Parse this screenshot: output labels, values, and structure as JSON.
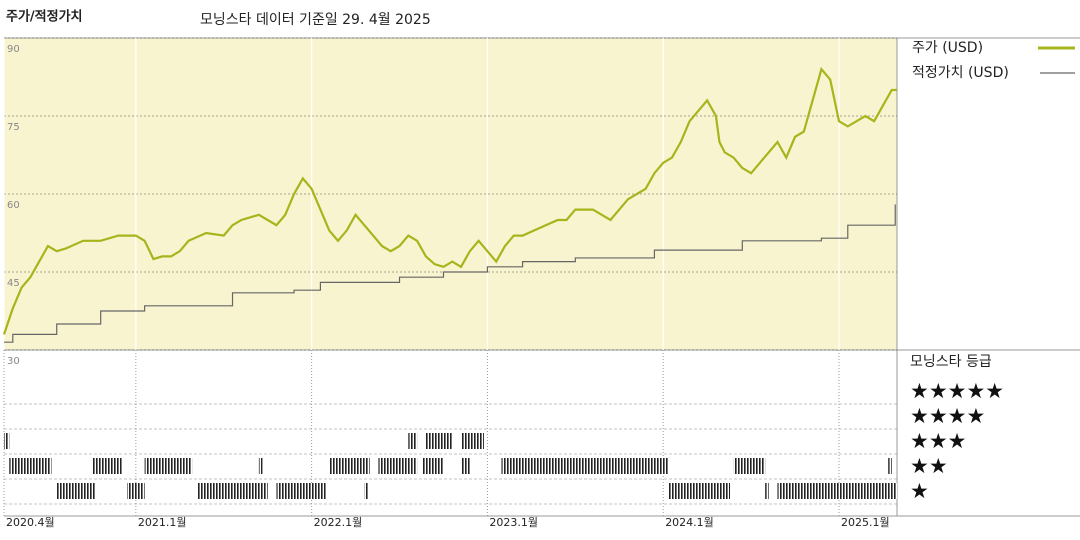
{
  "chart_data": {
    "type": "line",
    "title": "주가/적정가치",
    "subtitle": "모닝스타 데이터 기준일 29. 4월 2025",
    "xlim": [
      2020.25,
      2025.33
    ],
    "ylim": [
      30,
      90
    ],
    "yticks": [
      30,
      45,
      60,
      75,
      90
    ],
    "xticks": [
      {
        "value": 2020.25,
        "label": "2020.4월"
      },
      {
        "value": 2021,
        "label": "2021.1월"
      },
      {
        "value": 2022,
        "label": "2022.1월"
      },
      {
        "value": 2023,
        "label": "2023.1월"
      },
      {
        "value": 2024,
        "label": "2024.1월"
      },
      {
        "value": 2025,
        "label": "2025.1월"
      }
    ],
    "grid": true,
    "series": [
      {
        "name": "주가 (USD)",
        "color": "#a8b41c",
        "step": false,
        "x": [
          2020.25,
          2020.3,
          2020.35,
          2020.4,
          2020.45,
          2020.5,
          2020.55,
          2020.6,
          2020.7,
          2020.8,
          2020.9,
          2021.0,
          2021.05,
          2021.1,
          2021.15,
          2021.2,
          2021.25,
          2021.3,
          2021.4,
          2021.5,
          2021.55,
          2021.6,
          2021.7,
          2021.75,
          2021.8,
          2021.85,
          2021.9,
          2021.95,
          2022.0,
          2022.05,
          2022.1,
          2022.15,
          2022.2,
          2022.25,
          2022.3,
          2022.35,
          2022.4,
          2022.45,
          2022.5,
          2022.55,
          2022.6,
          2022.65,
          2022.7,
          2022.75,
          2022.8,
          2022.85,
          2022.9,
          2022.95,
          2023.0,
          2023.05,
          2023.1,
          2023.15,
          2023.2,
          2023.3,
          2023.4,
          2023.45,
          2023.5,
          2023.55,
          2023.6,
          2023.7,
          2023.75,
          2023.8,
          2023.85,
          2023.9,
          2023.95,
          2024.0,
          2024.05,
          2024.1,
          2024.15,
          2024.2,
          2024.25,
          2024.3,
          2024.32,
          2024.35,
          2024.4,
          2024.45,
          2024.5,
          2024.55,
          2024.6,
          2024.65,
          2024.7,
          2024.75,
          2024.8,
          2024.85,
          2024.9,
          2024.95,
          2025.0,
          2025.05,
          2025.1,
          2025.15,
          2025.2,
          2025.25,
          2025.3,
          2025.33
        ],
        "values": [
          33,
          38,
          42,
          44,
          47,
          50,
          49,
          49.5,
          51,
          51,
          52,
          52,
          51,
          47.5,
          48,
          48,
          49,
          51,
          52.5,
          52,
          54,
          55,
          56,
          55,
          54,
          56,
          60,
          63,
          61,
          57,
          53,
          51,
          53,
          56,
          54,
          52,
          50,
          49,
          50,
          52,
          51,
          48,
          46.5,
          46,
          47,
          46,
          49,
          51,
          49,
          47,
          50,
          52,
          52,
          53.5,
          55,
          55,
          57,
          57,
          57,
          55,
          57,
          59,
          60,
          61,
          64,
          66,
          67,
          70,
          74,
          76,
          78,
          75,
          70,
          68,
          67,
          65,
          64,
          66,
          68,
          70,
          67,
          71,
          72,
          78,
          84,
          82,
          74,
          73,
          74,
          75,
          74,
          77,
          80,
          80
        ]
      },
      {
        "name": "적정가치 (USD)",
        "color": "#666666",
        "step": true,
        "x": [
          2020.25,
          2020.3,
          2020.55,
          2020.8,
          2021.05,
          2021.55,
          2021.9,
          2022.05,
          2022.5,
          2022.75,
          2023.0,
          2023.2,
          2023.5,
          2023.95,
          2024.45,
          2024.9,
          2025.05,
          2025.32
        ],
        "values": [
          31.5,
          33,
          35,
          37.5,
          38.5,
          41,
          41.5,
          43,
          44,
          45,
          46,
          47,
          47.7,
          49.2,
          51,
          51.5,
          54,
          58
        ]
      }
    ],
    "ratings": {
      "title": "모닝스타 등급",
      "levels": [
        "★★★★★",
        "★★★★",
        "★★★",
        "★★",
        "★"
      ],
      "periods": [
        {
          "start": 2020.25,
          "end": 2020.28,
          "rating": 3
        },
        {
          "start": 2022.55,
          "end": 2022.6,
          "rating": 3
        },
        {
          "start": 2022.65,
          "end": 2022.8,
          "rating": 3
        },
        {
          "start": 2022.85,
          "end": 2022.98,
          "rating": 3
        },
        {
          "start": 2020.28,
          "end": 2020.52,
          "rating": 2
        },
        {
          "start": 2020.75,
          "end": 2020.92,
          "rating": 2
        },
        {
          "start": 2021.05,
          "end": 2021.32,
          "rating": 2
        },
        {
          "start": 2021.7,
          "end": 2021.72,
          "rating": 2
        },
        {
          "start": 2022.1,
          "end": 2022.33,
          "rating": 2
        },
        {
          "start": 2022.38,
          "end": 2022.6,
          "rating": 2
        },
        {
          "start": 2022.63,
          "end": 2022.75,
          "rating": 2
        },
        {
          "start": 2022.85,
          "end": 2022.9,
          "rating": 2
        },
        {
          "start": 2023.08,
          "end": 2024.03,
          "rating": 2
        },
        {
          "start": 2024.4,
          "end": 2024.58,
          "rating": 2
        },
        {
          "start": 2025.28,
          "end": 2025.3,
          "rating": 2
        },
        {
          "start": 2020.55,
          "end": 2020.77,
          "rating": 1
        },
        {
          "start": 2020.95,
          "end": 2021.05,
          "rating": 1
        },
        {
          "start": 2021.35,
          "end": 2021.75,
          "rating": 1
        },
        {
          "start": 2021.8,
          "end": 2022.08,
          "rating": 1
        },
        {
          "start": 2022.3,
          "end": 2022.32,
          "rating": 1
        },
        {
          "start": 2024.03,
          "end": 2024.38,
          "rating": 1
        },
        {
          "start": 2024.58,
          "end": 2024.6,
          "rating": 1
        },
        {
          "start": 2024.65,
          "end": 2025.33,
          "rating": 1
        }
      ]
    }
  }
}
